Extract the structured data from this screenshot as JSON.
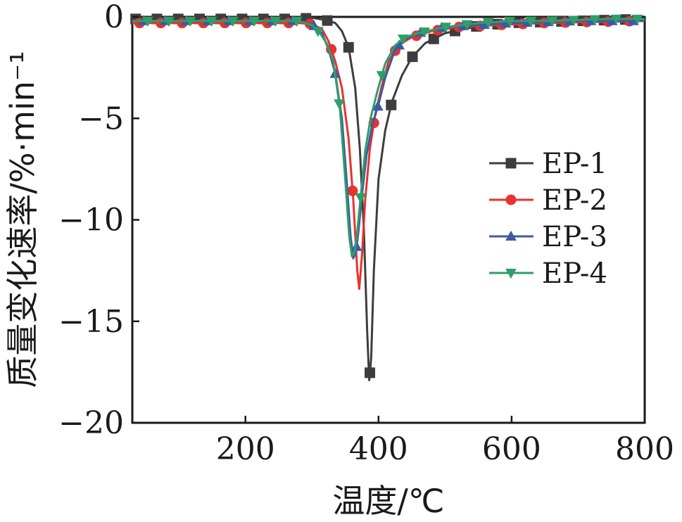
{
  "chart_data": {
    "type": "line",
    "xlabel": "温度/℃",
    "ylabel": "质量变化速率/%·min⁻¹",
    "xlim": [
      30,
      800
    ],
    "ylim": [
      -20,
      0
    ],
    "x_ticks": [
      200,
      400,
      600,
      800
    ],
    "y_ticks": [
      0,
      -5,
      -10,
      -15,
      -20
    ],
    "x_tick_labels": [
      "200",
      "400",
      "600",
      "800"
    ],
    "y_tick_labels": [
      "0",
      "−5",
      "−10",
      "−15",
      "−20"
    ],
    "grid": false,
    "legend_position": "right",
    "series": [
      {
        "name": "EP-1",
        "color": "#3d3d3d",
        "marker": "square",
        "x": [
          30,
          100,
          200,
          280,
          300,
          320,
          335,
          345,
          355,
          365,
          372,
          378,
          383,
          386,
          389,
          393,
          400,
          410,
          420,
          435,
          450,
          470,
          500,
          550,
          600,
          650,
          700,
          750,
          800
        ],
        "y": [
          -0.1,
          -0.1,
          -0.1,
          -0.1,
          -0.05,
          -0.15,
          -0.3,
          -0.7,
          -1.5,
          -3.5,
          -6.5,
          -10.5,
          -15.5,
          -17.9,
          -16.8,
          -12.5,
          -8.0,
          -5.6,
          -4.2,
          -2.9,
          -2.0,
          -1.3,
          -0.8,
          -0.45,
          -0.3,
          -0.25,
          -0.2,
          -0.15,
          -0.1
        ]
      },
      {
        "name": "EP-2",
        "color": "#e8322e",
        "marker": "circle",
        "x": [
          30,
          100,
          200,
          280,
          300,
          315,
          325,
          335,
          345,
          355,
          362,
          368,
          371,
          375,
          380,
          387,
          395,
          405,
          415,
          430,
          450,
          480,
          520,
          580,
          650,
          720,
          800
        ],
        "y": [
          -0.3,
          -0.3,
          -0.3,
          -0.3,
          -0.35,
          -0.6,
          -1.2,
          -2.2,
          -3.5,
          -6.0,
          -9.0,
          -12.5,
          -13.4,
          -11.8,
          -9.0,
          -6.5,
          -4.8,
          -3.4,
          -2.2,
          -1.4,
          -1.0,
          -0.7,
          -0.5,
          -0.4,
          -0.3,
          -0.25,
          -0.2
        ]
      },
      {
        "name": "EP-3",
        "color": "#3b5aa6",
        "marker": "triangle-up",
        "x": [
          30,
          100,
          200,
          280,
          300,
          315,
          325,
          335,
          345,
          352,
          358,
          362,
          366,
          370,
          375,
          382,
          390,
          400,
          410,
          425,
          440,
          460,
          500,
          550,
          600,
          700,
          800
        ],
        "y": [
          -0.2,
          -0.2,
          -0.2,
          -0.2,
          -0.35,
          -0.8,
          -1.6,
          -2.8,
          -5.0,
          -8.0,
          -10.8,
          -11.9,
          -11.6,
          -10.5,
          -8.8,
          -6.8,
          -5.4,
          -4.3,
          -3.0,
          -1.6,
          -1.1,
          -0.8,
          -0.5,
          -0.4,
          -0.3,
          -0.2,
          -0.2
        ]
      },
      {
        "name": "EP-4",
        "color": "#2f9e68",
        "marker": "triangle-down",
        "x": [
          30,
          100,
          200,
          280,
          300,
          312,
          322,
          332,
          342,
          350,
          356,
          360,
          364,
          368,
          373,
          380,
          388,
          398,
          410,
          425,
          440,
          460,
          500,
          550,
          600,
          650,
          700,
          750,
          800
        ],
        "y": [
          -0.2,
          -0.2,
          -0.2,
          -0.2,
          -0.4,
          -0.8,
          -1.3,
          -2.2,
          -4.5,
          -8.0,
          -10.8,
          -11.8,
          -11.6,
          -10.6,
          -8.9,
          -6.6,
          -5.0,
          -3.7,
          -2.3,
          -1.4,
          -1.0,
          -0.8,
          -0.5,
          -0.3,
          -0.2,
          -0.2,
          -0.15,
          -0.1,
          -0.1
        ]
      }
    ]
  }
}
